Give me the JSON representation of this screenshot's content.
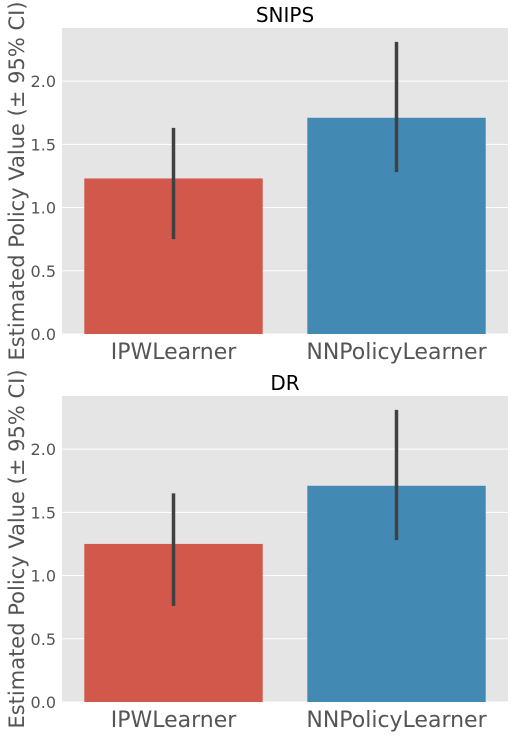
{
  "chart_data": [
    {
      "type": "bar",
      "title": "SNIPS",
      "ylabel": "Estimated Policy Value (± 95% CI)",
      "xlabel": "",
      "categories": [
        "IPWLearner",
        "NNPolicyLearner"
      ],
      "values": [
        1.23,
        1.71
      ],
      "ci_low": [
        0.75,
        1.28
      ],
      "ci_high": [
        1.63,
        2.31
      ],
      "colors": [
        "#d1584a",
        "#428ab4"
      ],
      "ylim": [
        0,
        2.42
      ],
      "yticks": [
        0.0,
        0.5,
        1.0,
        1.5,
        2.0
      ],
      "ytick_labels": [
        "0.0",
        "0.5",
        "1.0",
        "1.5",
        "2.0"
      ],
      "grid": true
    },
    {
      "type": "bar",
      "title": "DR",
      "ylabel": "Estimated Policy Value (± 95% CI)",
      "xlabel": "",
      "categories": [
        "IPWLearner",
        "NNPolicyLearner"
      ],
      "values": [
        1.25,
        1.71
      ],
      "ci_low": [
        0.76,
        1.28
      ],
      "ci_high": [
        1.65,
        2.31
      ],
      "colors": [
        "#d1584a",
        "#428ab4"
      ],
      "ylim": [
        0,
        2.42
      ],
      "yticks": [
        0.0,
        0.5,
        1.0,
        1.5,
        2.0
      ],
      "ytick_labels": [
        "0.0",
        "0.5",
        "1.0",
        "1.5",
        "2.0"
      ],
      "grid": true
    }
  ],
  "style": {
    "plot_background": "#e5e5e5",
    "grid_color": "#ffffff",
    "errorbar_color": "#404040",
    "text_color": "#555555",
    "title_color": "#000000"
  }
}
